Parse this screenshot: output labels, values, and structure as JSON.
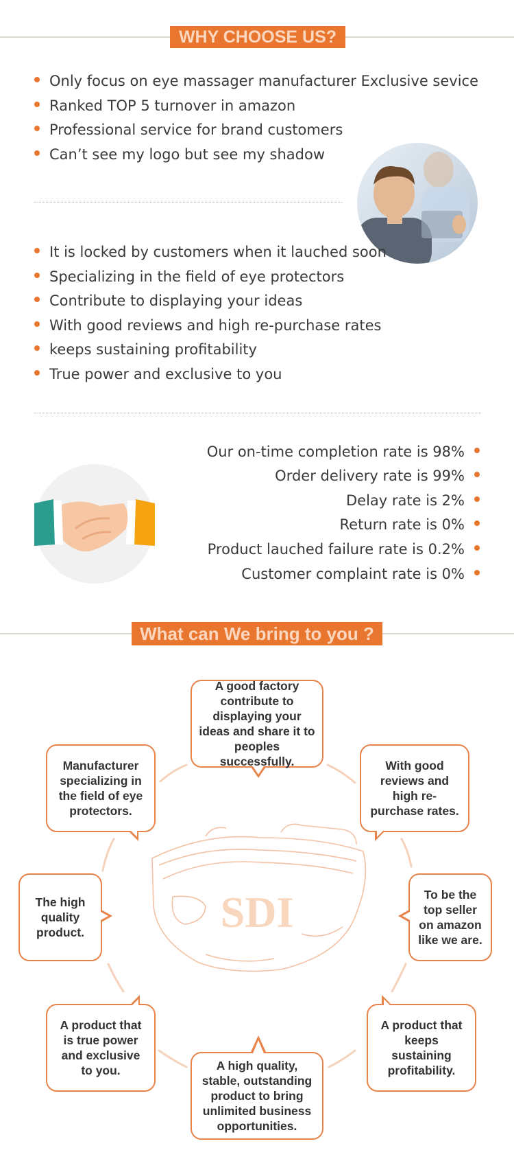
{
  "section1": {
    "title": "WHY CHOOSE US?",
    "bullets_a": [
      "Only focus on eye massager  manufacturer Exclusive sevice",
      "Ranked TOP 5 turnover in amazon",
      "Professional service for brand customers",
      "Can’t see my logo but see my shadow"
    ],
    "bullets_b": [
      "It is locked by customers when it lauched soon",
      "Specializing in the field of eye protectors",
      "Contribute to displaying your ideas",
      "With good reviews and high re-purchase rates",
      "keeps sustaining profitability",
      "True power and exclusive to you"
    ],
    "rates": [
      "Our on-time completion rate is 98%",
      "Order delivery rate is 99%",
      "Delay rate is 2%",
      "Return rate is 0%",
      "Product lauched failure rate is 0.2%",
      "Customer complaint rate is 0%"
    ]
  },
  "section2": {
    "title": "What can We bring to you ?",
    "logo_text": "SDI",
    "bubbles": {
      "top": "A good factory contribute to displaying your ideas and share it to peoples successfully.",
      "top_left": "Manufacturer specializing in the field of eye protectors.",
      "top_right": "With good reviews and high re-purchase rates.",
      "left": "The high quality product.",
      "right": "To be the top seller on amazon like we are.",
      "bottom_left": "A product that is true power and exclusive to you.",
      "bottom_right": "A product that keeps sustaining profitability.",
      "bottom": "A high quality, stable, outstanding product to bring unlimited business opportunities."
    }
  },
  "colors": {
    "accent": "#e8762f",
    "accent_light": "#fbd7bf"
  }
}
